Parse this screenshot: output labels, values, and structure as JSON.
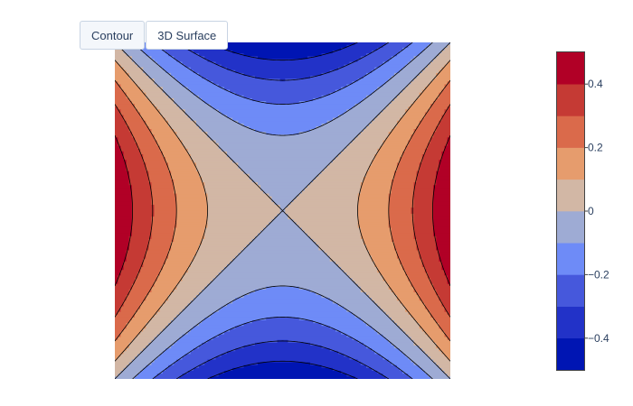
{
  "buttons": {
    "contour_label": "Contour",
    "surface_label": "3D Surface"
  },
  "chart_data": {
    "type": "contour",
    "function": "z = (x^2 - y^2) / 2",
    "x_range": [
      -1,
      1
    ],
    "y_range": [
      -1,
      1
    ],
    "zmin": -0.5,
    "zmax": 0.5,
    "contour_levels": [
      -0.4,
      -0.3,
      -0.2,
      -0.1,
      0,
      0.1,
      0.2,
      0.3,
      0.4
    ],
    "colorscale": [
      "#0015b3",
      "#2232c8",
      "#4658dc",
      "#6e8bf7",
      "#9eabd4",
      "#d2b7a5",
      "#e69c6d",
      "#da6a4b",
      "#c53a34",
      "#b10026"
    ],
    "colorbar": {
      "ticks": [
        0.4,
        0.2,
        0,
        -0.2,
        -0.4
      ],
      "tick_labels": [
        "0.4",
        "0.2",
        "0",
        "−0.2",
        "−0.4"
      ]
    },
    "show_axes": false
  }
}
